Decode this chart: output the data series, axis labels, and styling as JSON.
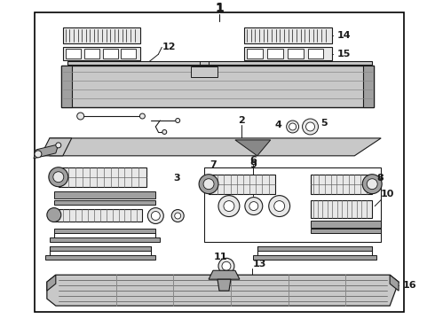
{
  "bg_color": "#ffffff",
  "border_lw": 1.2,
  "line_color": "#1a1a1a",
  "gray1": "#c8c8c8",
  "gray2": "#a0a0a0",
  "gray3": "#e8e8e8",
  "label_fs": 8,
  "label_fs_big": 10
}
